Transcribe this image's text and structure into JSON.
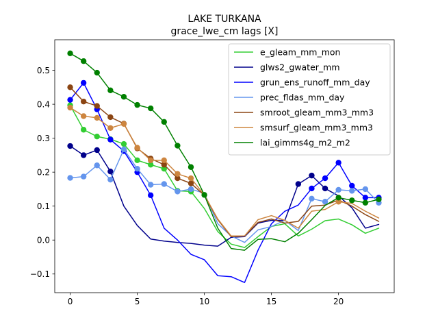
{
  "chart_data": {
    "type": "line",
    "title": "LAKE TURKANA",
    "subtitle": "grace_lwe_cm lags [X]",
    "xlabel": "",
    "ylabel": "",
    "xlim": [
      -1.15,
      24.15
    ],
    "ylim": [
      -0.155,
      0.59
    ],
    "x_ticks": [
      0,
      5,
      10,
      15,
      20
    ],
    "x_tick_labels": [
      "0",
      "5",
      "10",
      "15",
      "20"
    ],
    "y_ticks": [
      -0.1,
      0.0,
      0.1,
      0.2,
      0.3,
      0.4,
      0.5
    ],
    "y_tick_labels": [
      "−0.1",
      "0.0",
      "0.1",
      "0.2",
      "0.3",
      "0.4",
      "0.5"
    ],
    "grid": false,
    "legend_position": "top-right",
    "x": [
      0,
      1,
      2,
      3,
      4,
      5,
      6,
      7,
      8,
      9,
      10,
      11,
      12,
      13,
      14,
      15,
      16,
      17,
      18,
      19,
      20,
      21,
      22,
      23
    ],
    "series": [
      {
        "name": "e_gleam_mm_mon",
        "color": "#32cd32",
        "values": [
          0.397,
          0.325,
          0.305,
          0.297,
          0.283,
          0.235,
          0.222,
          0.21,
          0.145,
          0.143,
          0.093,
          0.025,
          -0.012,
          -0.022,
          0.01,
          0.04,
          0.048,
          0.012,
          0.032,
          0.057,
          0.062,
          0.045,
          0.02,
          0.035
        ],
        "markers": [
          true,
          true,
          true,
          true,
          true,
          true,
          true,
          true,
          true,
          true,
          false,
          false,
          false,
          false,
          false,
          false,
          false,
          false,
          false,
          false,
          false,
          false,
          false,
          false
        ]
      },
      {
        "name": "glws2_gwater_mm",
        "color": "#00008b",
        "values": [
          0.277,
          0.25,
          0.265,
          0.202,
          0.1,
          0.043,
          0.003,
          -0.003,
          -0.007,
          -0.01,
          -0.015,
          -0.018,
          0.008,
          0.01,
          0.05,
          0.058,
          0.058,
          0.165,
          0.19,
          0.152,
          0.13,
          0.095,
          0.035,
          0.046
        ],
        "markers": [
          true,
          true,
          true,
          true,
          false,
          false,
          false,
          false,
          false,
          false,
          false,
          false,
          false,
          false,
          false,
          false,
          false,
          true,
          true,
          true,
          false,
          false,
          false,
          false
        ]
      },
      {
        "name": "grun_ens_runoff_mm_day",
        "color": "#0000ff",
        "values": [
          0.413,
          0.463,
          0.385,
          0.296,
          0.262,
          0.2,
          0.132,
          0.035,
          0.0,
          -0.042,
          -0.058,
          -0.105,
          -0.108,
          -0.125,
          -0.03,
          0.048,
          0.085,
          0.103,
          0.152,
          0.182,
          0.228,
          0.16,
          0.125,
          0.125
        ],
        "markers": [
          true,
          true,
          true,
          true,
          true,
          true,
          true,
          false,
          false,
          false,
          false,
          false,
          false,
          false,
          false,
          false,
          false,
          false,
          true,
          true,
          true,
          true,
          true,
          true
        ]
      },
      {
        "name": "prec_fldas_mm_day",
        "color": "#6495ed",
        "values": [
          0.183,
          0.187,
          0.22,
          0.178,
          0.267,
          0.21,
          0.163,
          0.165,
          0.143,
          0.15,
          0.138,
          0.048,
          0.012,
          -0.007,
          0.03,
          0.04,
          0.058,
          0.028,
          0.122,
          0.113,
          0.148,
          0.145,
          0.15,
          0.11
        ],
        "markers": [
          true,
          true,
          true,
          true,
          true,
          true,
          true,
          true,
          true,
          true,
          false,
          false,
          false,
          false,
          false,
          false,
          false,
          false,
          true,
          true,
          true,
          true,
          true,
          true
        ]
      },
      {
        "name": "smroot_gleam_mm3_mm3",
        "color": "#8b4513",
        "values": [
          0.45,
          0.408,
          0.395,
          0.362,
          0.343,
          0.27,
          0.24,
          0.222,
          0.182,
          0.167,
          0.132,
          0.06,
          0.01,
          0.012,
          0.052,
          0.062,
          0.05,
          0.055,
          0.1,
          0.103,
          0.118,
          0.1,
          0.075,
          0.055
        ],
        "markers": [
          true,
          true,
          true,
          true,
          true,
          true,
          true,
          true,
          true,
          true,
          false,
          false,
          false,
          false,
          false,
          false,
          false,
          false,
          false,
          false,
          false,
          false,
          false,
          false
        ]
      },
      {
        "name": "smsurf_gleam_mm3_mm3",
        "color": "#cd853f",
        "values": [
          0.39,
          0.365,
          0.36,
          0.33,
          0.342,
          0.272,
          0.235,
          0.235,
          0.195,
          0.182,
          0.133,
          0.062,
          0.012,
          0.012,
          0.06,
          0.072,
          0.058,
          0.035,
          0.085,
          0.09,
          0.113,
          0.108,
          0.085,
          0.065
        ],
        "markers": [
          true,
          true,
          true,
          true,
          true,
          true,
          true,
          true,
          true,
          true,
          false,
          false,
          false,
          false,
          false,
          false,
          false,
          false,
          false,
          false,
          true,
          false,
          false,
          false
        ]
      },
      {
        "name": "lai_gimms4g_m2_m2",
        "color": "#008000",
        "values": [
          0.55,
          0.527,
          0.493,
          0.441,
          0.422,
          0.398,
          0.388,
          0.348,
          0.278,
          0.215,
          0.133,
          0.035,
          -0.025,
          -0.03,
          0.002,
          0.004,
          -0.005,
          0.02,
          0.06,
          0.102,
          0.125,
          0.117,
          0.11,
          0.12
        ],
        "markers": [
          true,
          true,
          true,
          true,
          true,
          true,
          true,
          true,
          true,
          true,
          true,
          false,
          false,
          false,
          false,
          false,
          false,
          false,
          false,
          false,
          true,
          true,
          true,
          true
        ]
      }
    ]
  }
}
